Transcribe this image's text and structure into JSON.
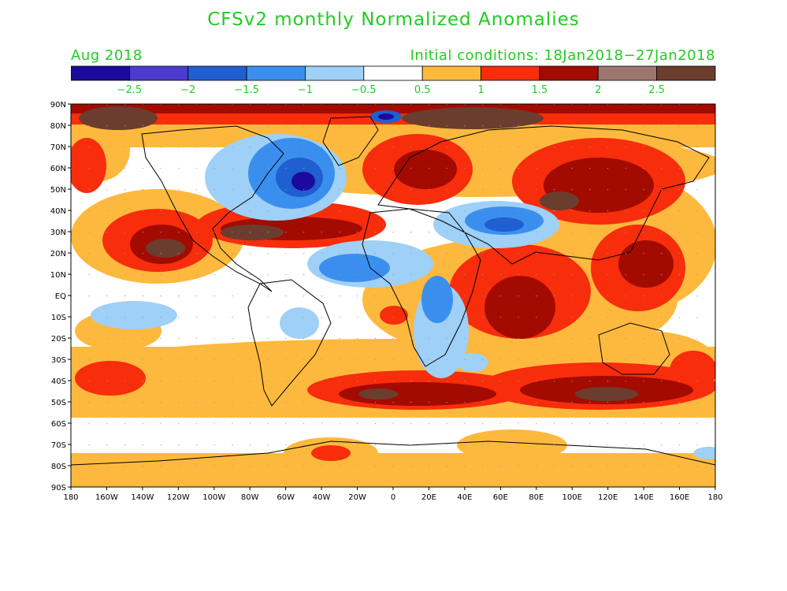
{
  "title": "CFSv2 monthly Normalized Anomalies",
  "valid_month": "Aug 2018",
  "initial_conditions": "Initial conditions: 18Jan2018−27Jan2018",
  "colorbar": {
    "colors": [
      "#1c0a9c",
      "#4b3ccf",
      "#1f5fd1",
      "#3a8fee",
      "#9fd0f7",
      "#ffffff",
      "#fdb93e",
      "#f72d0c",
      "#a30b00",
      "#9c7770",
      "#6b3d2e"
    ],
    "tick_labels": [
      "−2.5",
      "−2",
      "−1.5",
      "−1",
      "−0.5",
      "0.5",
      "1",
      "1.5",
      "2",
      "2.5"
    ]
  },
  "map": {
    "lat_labels": [
      "90N",
      "80N",
      "70N",
      "60N",
      "50N",
      "40N",
      "30N",
      "20N",
      "10N",
      "EQ",
      "10S",
      "20S",
      "30S",
      "40S",
      "50S",
      "60S",
      "70S",
      "80S",
      "90S"
    ],
    "lon_labels": [
      "180",
      "160W",
      "140W",
      "120W",
      "100W",
      "80W",
      "60W",
      "40W",
      "20W",
      "0",
      "20E",
      "40E",
      "60E",
      "80E",
      "100E",
      "120E",
      "140E",
      "160E",
      "180"
    ]
  }
}
